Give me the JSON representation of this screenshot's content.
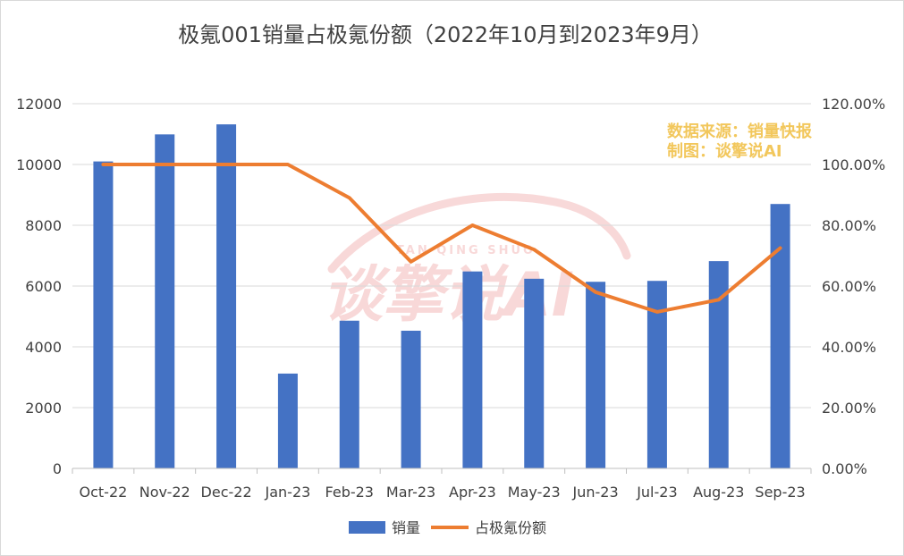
{
  "chart_data": {
    "type": "bar+line",
    "title": "极氪001销量占极氪份额（2022年10月到2023年9月）",
    "categories": [
      "Oct-22",
      "Nov-22",
      "Dec-22",
      "Jan-23",
      "Feb-23",
      "Mar-23",
      "Apr-23",
      "May-23",
      "Jun-23",
      "Jul-23",
      "Aug-23",
      "Sep-23"
    ],
    "series": [
      {
        "name": "销量",
        "type": "bar",
        "axis": "left",
        "color": "#4472c4",
        "values": [
          10100,
          10990,
          11320,
          3120,
          4860,
          4530,
          6480,
          6240,
          6140,
          6170,
          6820,
          8700
        ]
      },
      {
        "name": "占极氪份额",
        "type": "line",
        "axis": "right",
        "color": "#ed7d31",
        "values": [
          1.0,
          1.0,
          1.0,
          1.0,
          0.89,
          0.68,
          0.8,
          0.72,
          0.58,
          0.515,
          0.555,
          0.725
        ]
      }
    ],
    "y_left": {
      "lim": [
        0,
        12000
      ],
      "ticks": [
        "0",
        "2000",
        "4000",
        "6000",
        "8000",
        "10000",
        "12000"
      ]
    },
    "y_right": {
      "lim": [
        0,
        1.2
      ],
      "ticks": [
        "0.00%",
        "20.00%",
        "40.00%",
        "60.00%",
        "80.00%",
        "100.00%",
        "120.00%"
      ]
    },
    "grid": true,
    "legend": "bottom"
  },
  "annotation": {
    "line1": "数据来源：销量快报",
    "line2": "制图：谈擎说AI"
  },
  "watermark": {
    "text": "谈擎说AI",
    "subtext": "TAN QING SHUO"
  }
}
